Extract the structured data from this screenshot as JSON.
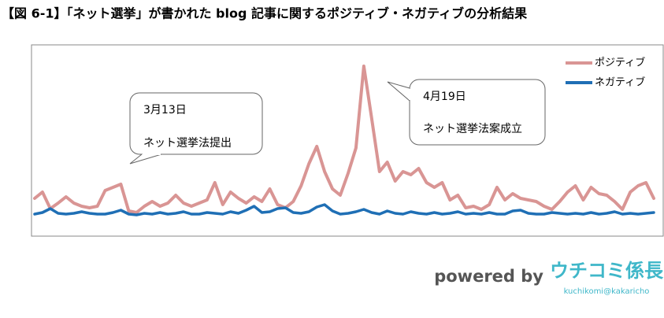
{
  "chart_data": {
    "type": "line",
    "title": "【図 6-1】「ネット選挙」が書かれた blog 記事に関するポジティブ・ネガティブの分析結果",
    "ylim": [
      0,
      240
    ],
    "legend": "top-right",
    "series": [
      {
        "name": "ポジティブ",
        "color": "#d99594",
        "values": [
          48,
          56,
          35,
          42,
          50,
          42,
          38,
          36,
          38,
          58,
          62,
          66,
          32,
          30,
          38,
          44,
          38,
          42,
          52,
          42,
          38,
          42,
          46,
          68,
          40,
          56,
          48,
          42,
          50,
          44,
          60,
          40,
          36,
          44,
          64,
          92,
          114,
          82,
          60,
          52,
          80,
          112,
          216,
          150,
          82,
          94,
          70,
          82,
          78,
          86,
          68,
          62,
          68,
          46,
          52,
          36,
          38,
          34,
          40,
          62,
          46,
          54,
          48,
          46,
          44,
          38,
          34,
          44,
          56,
          64,
          46,
          62,
          54,
          52,
          44,
          34,
          56,
          64,
          68,
          48
        ]
      },
      {
        "name": "ネガティブ",
        "color": "#1f6fb5",
        "values": [
          28,
          30,
          35,
          29,
          28,
          29,
          31,
          29,
          28,
          28,
          30,
          33,
          28,
          27,
          29,
          28,
          30,
          28,
          29,
          31,
          28,
          28,
          30,
          29,
          28,
          31,
          29,
          33,
          38,
          30,
          31,
          35,
          36,
          30,
          29,
          31,
          37,
          40,
          32,
          28,
          29,
          31,
          34,
          30,
          28,
          32,
          29,
          28,
          31,
          29,
          28,
          30,
          28,
          29,
          31,
          28,
          29,
          28,
          30,
          28,
          28,
          32,
          33,
          29,
          28,
          28,
          30,
          29,
          28,
          29,
          28,
          30,
          28,
          29,
          31,
          28,
          29,
          28,
          29,
          30
        ]
      }
    ],
    "annotations": [
      {
        "date": "3月13日",
        "text": "ネット選挙法提出"
      },
      {
        "date": "4月19日",
        "text": "ネット選挙法案成立"
      }
    ]
  },
  "footer": {
    "powered_by": "powered by",
    "logo": "ウチコミ係長",
    "logo_sub": "kuchikomi@kakaricho"
  }
}
